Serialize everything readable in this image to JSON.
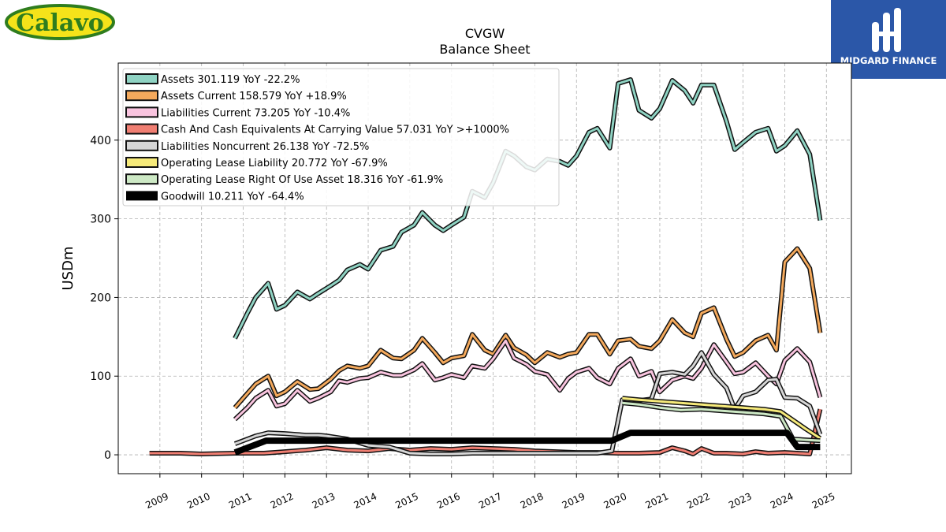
{
  "brand": {
    "left_logo_text": "Calavo",
    "right_logo_text": "MIDGARD FINANCE",
    "left_logo_color": "#f5e31a",
    "left_logo_green": "#2f7d1e",
    "right_logo_bg": "#2b57a8"
  },
  "chart_data": {
    "type": "line",
    "title": "CVGW",
    "subtitle": "Balance  Sheet",
    "ylabel": "USDm",
    "xlabel": "",
    "ylim": [
      -24,
      498
    ],
    "xlim": [
      2008.0,
      2025.6
    ],
    "yticks": [
      0,
      100,
      200,
      300,
      400
    ],
    "xticks": [
      2009,
      2010,
      2011,
      2012,
      2013,
      2014,
      2015,
      2016,
      2017,
      2018,
      2019,
      2020,
      2021,
      2022,
      2023,
      2024,
      2025
    ],
    "grid": true,
    "legend_position": "top-left",
    "series": [
      {
        "name": "Assets  301.119 YoY -22.2%",
        "color": "#8fd3c3",
        "width": 3,
        "x": [
          2010.8,
          2011.1,
          2011.3,
          2011.6,
          2011.8,
          2012.0,
          2012.3,
          2012.6,
          2012.8,
          2013.1,
          2013.3,
          2013.5,
          2013.8,
          2014.0,
          2014.3,
          2014.6,
          2014.8,
          2015.1,
          2015.3,
          2015.6,
          2015.8,
          2016.0,
          2016.3,
          2016.5,
          2016.8,
          2017.0,
          2017.3,
          2017.5,
          2017.8,
          2018.0,
          2018.3,
          2018.6,
          2018.8,
          2019.0,
          2019.3,
          2019.5,
          2019.8,
          2020.0,
          2020.3,
          2020.5,
          2020.8,
          2021.0,
          2021.3,
          2021.6,
          2021.8,
          2022.0,
          2022.3,
          2022.6,
          2022.8,
          2023.0,
          2023.3,
          2023.6,
          2023.8,
          2024.0,
          2024.3,
          2024.6,
          2024.85
        ],
        "y": [
          148,
          180,
          200,
          218,
          185,
          190,
          207,
          198,
          205,
          215,
          222,
          235,
          242,
          236,
          260,
          265,
          283,
          292,
          308,
          292,
          285,
          292,
          302,
          335,
          327,
          346,
          386,
          380,
          366,
          362,
          376,
          373,
          368,
          380,
          410,
          415,
          390,
          472,
          477,
          438,
          428,
          440,
          476,
          463,
          447,
          470,
          470,
          424,
          388,
          397,
          410,
          415,
          386,
          393,
          412,
          382,
          298
        ]
      },
      {
        "name": "Assets Current  158.579 YoY +18.9%",
        "color": "#f4a95c",
        "width": 3,
        "x": [
          2010.8,
          2011.1,
          2011.3,
          2011.6,
          2011.8,
          2012.0,
          2012.3,
          2012.6,
          2012.8,
          2013.1,
          2013.3,
          2013.5,
          2013.8,
          2014.0,
          2014.3,
          2014.6,
          2014.8,
          2015.1,
          2015.3,
          2015.6,
          2015.8,
          2016.0,
          2016.3,
          2016.5,
          2016.8,
          2017.0,
          2017.3,
          2017.5,
          2017.8,
          2018.0,
          2018.3,
          2018.6,
          2018.8,
          2019.0,
          2019.3,
          2019.5,
          2019.8,
          2020.0,
          2020.3,
          2020.5,
          2020.8,
          2021.0,
          2021.3,
          2021.6,
          2021.8,
          2022.0,
          2022.3,
          2022.6,
          2022.8,
          2023.0,
          2023.3,
          2023.6,
          2023.8,
          2024.0,
          2024.3,
          2024.6,
          2024.85
        ],
        "y": [
          60,
          78,
          90,
          100,
          75,
          80,
          93,
          83,
          84,
          96,
          107,
          113,
          110,
          113,
          133,
          123,
          122,
          133,
          148,
          130,
          117,
          123,
          126,
          153,
          133,
          128,
          152,
          136,
          127,
          117,
          130,
          124,
          128,
          130,
          153,
          153,
          128,
          145,
          147,
          138,
          135,
          145,
          172,
          155,
          150,
          180,
          187,
          147,
          125,
          130,
          145,
          152,
          133,
          245,
          262,
          237,
          155
        ]
      },
      {
        "name": "Liabilities Current  73.205 YoY -10.4%",
        "color": "#f9c4df",
        "width": 3,
        "x": [
          2010.8,
          2011.1,
          2011.3,
          2011.6,
          2011.8,
          2012.0,
          2012.3,
          2012.6,
          2012.8,
          2013.1,
          2013.3,
          2013.5,
          2013.8,
          2014.0,
          2014.3,
          2014.6,
          2014.8,
          2015.1,
          2015.3,
          2015.6,
          2015.8,
          2016.0,
          2016.3,
          2016.5,
          2016.8,
          2017.0,
          2017.3,
          2017.5,
          2017.8,
          2018.0,
          2018.3,
          2018.6,
          2018.8,
          2019.0,
          2019.3,
          2019.5,
          2019.8,
          2020.0,
          2020.3,
          2020.5,
          2020.8,
          2021.0,
          2021.3,
          2021.6,
          2021.8,
          2022.0,
          2022.3,
          2022.6,
          2022.8,
          2023.0,
          2023.3,
          2023.6,
          2023.8,
          2024.0,
          2024.3,
          2024.6,
          2024.85
        ],
        "y": [
          45,
          60,
          72,
          82,
          62,
          65,
          82,
          68,
          72,
          80,
          94,
          92,
          97,
          98,
          105,
          101,
          101,
          108,
          116,
          95,
          98,
          102,
          98,
          113,
          110,
          122,
          145,
          123,
          115,
          106,
          102,
          82,
          97,
          105,
          110,
          98,
          90,
          110,
          122,
          100,
          106,
          80,
          95,
          100,
          97,
          110,
          140,
          118,
          103,
          105,
          117,
          100,
          90,
          120,
          135,
          118,
          73
        ]
      },
      {
        "name": "Cash And Cash Equivalents At Carrying Value  57.031 YoY >+1000%",
        "color": "#f07e72",
        "width": 3,
        "x": [
          2008.75,
          2009.5,
          2010.0,
          2010.8,
          2011.5,
          2012.0,
          2012.5,
          2013.0,
          2013.5,
          2014.0,
          2014.5,
          2015.0,
          2015.5,
          2016.0,
          2016.5,
          2017.0,
          2017.5,
          2018.0,
          2018.5,
          2019.0,
          2019.5,
          2020.0,
          2020.5,
          2021.0,
          2021.3,
          2021.6,
          2021.8,
          2022.0,
          2022.3,
          2022.6,
          2023.0,
          2023.3,
          2023.6,
          2024.0,
          2024.3,
          2024.6,
          2024.85
        ],
        "y": [
          2,
          2,
          1,
          2,
          2,
          4,
          6,
          9,
          6,
          5,
          8,
          6,
          8,
          7,
          9,
          8,
          7,
          5,
          4,
          3,
          3,
          2,
          2,
          3,
          9,
          5,
          1,
          8,
          2,
          2,
          1,
          4,
          2,
          3,
          2,
          1,
          58
        ]
      },
      {
        "name": "Liabilities Noncurrent  26.138 YoY -72.5%",
        "color": "#d6d6d6",
        "width": 3,
        "x": [
          2010.8,
          2011.3,
          2011.6,
          2012.0,
          2012.5,
          2012.8,
          2013.0,
          2013.5,
          2014.0,
          2014.5,
          2015.0,
          2015.5,
          2016.0,
          2016.5,
          2017.0,
          2017.5,
          2018.0,
          2018.5,
          2019.0,
          2019.5,
          2019.85,
          2020.1,
          2020.5,
          2020.8,
          2021.0,
          2021.3,
          2021.6,
          2021.8,
          2022.0,
          2022.3,
          2022.6,
          2022.8,
          2023.0,
          2023.3,
          2023.6,
          2023.8,
          2024.0,
          2024.3,
          2024.6,
          2024.85
        ],
        "y": [
          14,
          24,
          28,
          27,
          25,
          25,
          24,
          20,
          12,
          10,
          2,
          1,
          1,
          2,
          2,
          2,
          2,
          2,
          2,
          2,
          5,
          70,
          69,
          71,
          103,
          105,
          102,
          113,
          130,
          102,
          85,
          58,
          75,
          80,
          95,
          96,
          73,
          72,
          62,
          26
        ]
      },
      {
        "name": "Operating Lease Liability  20.772 YoY -67.9%",
        "color": "#f6ea7a",
        "width": 3,
        "x": [
          2020.1,
          2020.5,
          2021.0,
          2021.5,
          2022.0,
          2022.5,
          2023.0,
          2023.5,
          2023.9,
          2024.2,
          2024.5,
          2024.85
        ],
        "y": [
          72,
          70,
          68,
          66,
          64,
          62,
          60,
          58,
          55,
          44,
          33,
          21
        ]
      },
      {
        "name": "Operating Lease Right Of Use Asset  18.316 YoY -61.9%",
        "color": "#cde9c5",
        "width": 3,
        "x": [
          2020.1,
          2020.5,
          2021.0,
          2021.5,
          2022.0,
          2022.5,
          2023.0,
          2023.5,
          2023.9,
          2024.2,
          2024.5,
          2024.85
        ],
        "y": [
          66,
          64,
          60,
          57,
          58,
          56,
          54,
          52,
          49,
          20,
          19,
          18
        ]
      },
      {
        "name": "Goodwill  10.211 YoY -64.4%",
        "color": "#000000",
        "width": 8,
        "x": [
          2010.8,
          2011.55,
          2012.0,
          2019.85,
          2020.3,
          2024.05,
          2024.3,
          2024.85
        ],
        "y": [
          3,
          18,
          18,
          18,
          28,
          28,
          10,
          10
        ]
      }
    ]
  }
}
